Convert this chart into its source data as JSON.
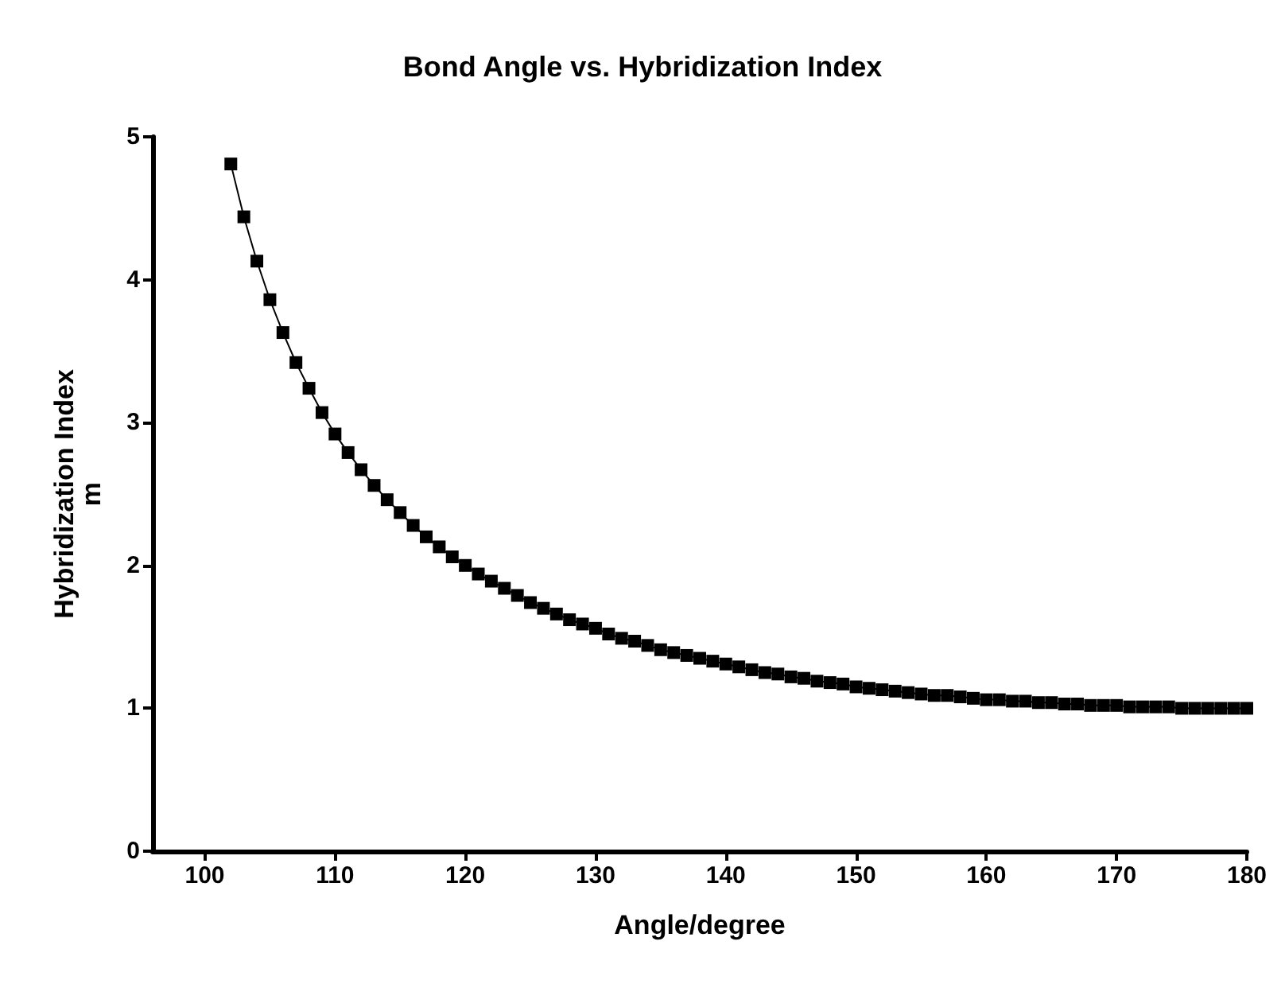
{
  "chart_data": {
    "type": "line",
    "title": "Bond Angle vs. Hybridization Index",
    "xlabel": "Angle/degree",
    "ylabel": "Hybridization Index\nm",
    "marker": "square",
    "line_style": "solid",
    "grid": false,
    "x": [
      102,
      103,
      104,
      105,
      106,
      107,
      108,
      109,
      110,
      111,
      112,
      113,
      114,
      115,
      116,
      117,
      118,
      119,
      120,
      121,
      122,
      123,
      124,
      125,
      126,
      127,
      128,
      129,
      130,
      131,
      132,
      133,
      134,
      135,
      136,
      137,
      138,
      139,
      140,
      141,
      142,
      143,
      144,
      145,
      146,
      147,
      148,
      149,
      150,
      151,
      152,
      153,
      154,
      155,
      156,
      157,
      158,
      159,
      160,
      161,
      162,
      163,
      164,
      165,
      166,
      167,
      168,
      169,
      170,
      171,
      172,
      173,
      174,
      175,
      176,
      177,
      178,
      179,
      180
    ],
    "series": [
      {
        "color": "#000000",
        "values": [
          4.81,
          4.44,
          4.13,
          3.86,
          3.63,
          3.42,
          3.24,
          3.07,
          2.92,
          2.79,
          2.67,
          2.56,
          2.46,
          2.37,
          2.28,
          2.2,
          2.13,
          2.06,
          2.0,
          1.94,
          1.89,
          1.84,
          1.79,
          1.74,
          1.7,
          1.66,
          1.62,
          1.59,
          1.56,
          1.52,
          1.49,
          1.47,
          1.44,
          1.41,
          1.39,
          1.37,
          1.35,
          1.33,
          1.31,
          1.29,
          1.27,
          1.25,
          1.24,
          1.22,
          1.21,
          1.19,
          1.18,
          1.17,
          1.15,
          1.14,
          1.13,
          1.12,
          1.11,
          1.1,
          1.09,
          1.09,
          1.08,
          1.07,
          1.06,
          1.06,
          1.05,
          1.05,
          1.04,
          1.04,
          1.03,
          1.03,
          1.02,
          1.02,
          1.02,
          1.01,
          1.01,
          1.01,
          1.01,
          1.0,
          1.0,
          1.0,
          1.0,
          1.0,
          1.0
        ]
      }
    ],
    "xlim": [
      96,
      180
    ],
    "xticks": [
      100,
      110,
      120,
      130,
      140,
      150,
      160,
      170,
      180
    ],
    "ylim": [
      0,
      5
    ],
    "yticks": [
      0,
      1,
      2,
      3,
      4,
      5
    ]
  }
}
